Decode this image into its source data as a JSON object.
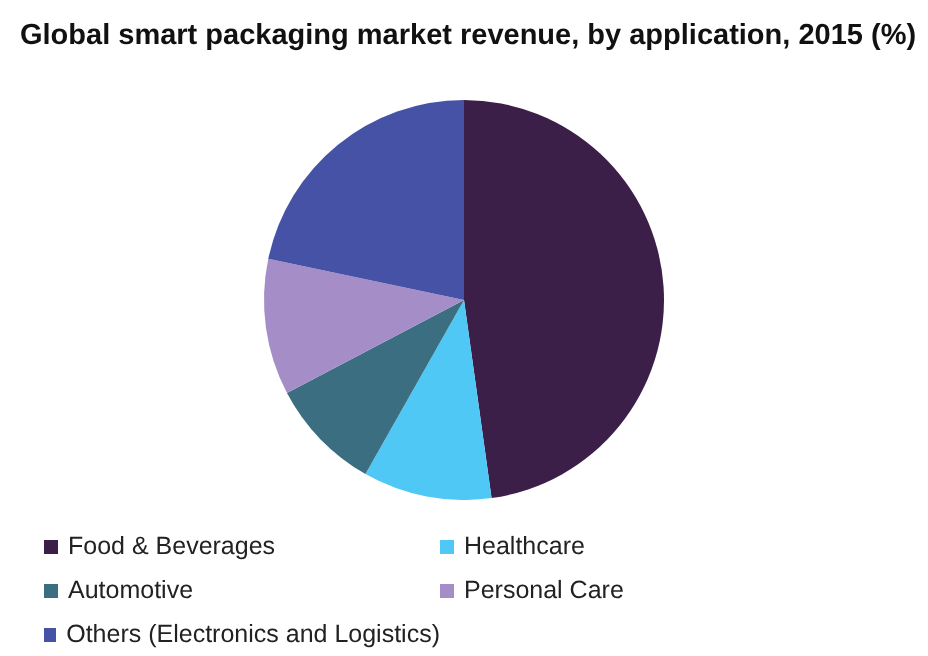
{
  "chart_data": {
    "type": "pie",
    "title": "Global smart packaging market revenue, by application, 2015 (%)",
    "categories": [
      "Food & Beverages",
      "Healthcare",
      "Automotive",
      "Personal Care",
      "Others (Electronics and Logistics)"
    ],
    "values": [
      47.8,
      10.4,
      9.1,
      11,
      21.7
    ],
    "colors": [
      "#3b1f48",
      "#4fc8f5",
      "#3a6e80",
      "#a58ec8",
      "#4652a6"
    ],
    "legend": "bottom"
  }
}
